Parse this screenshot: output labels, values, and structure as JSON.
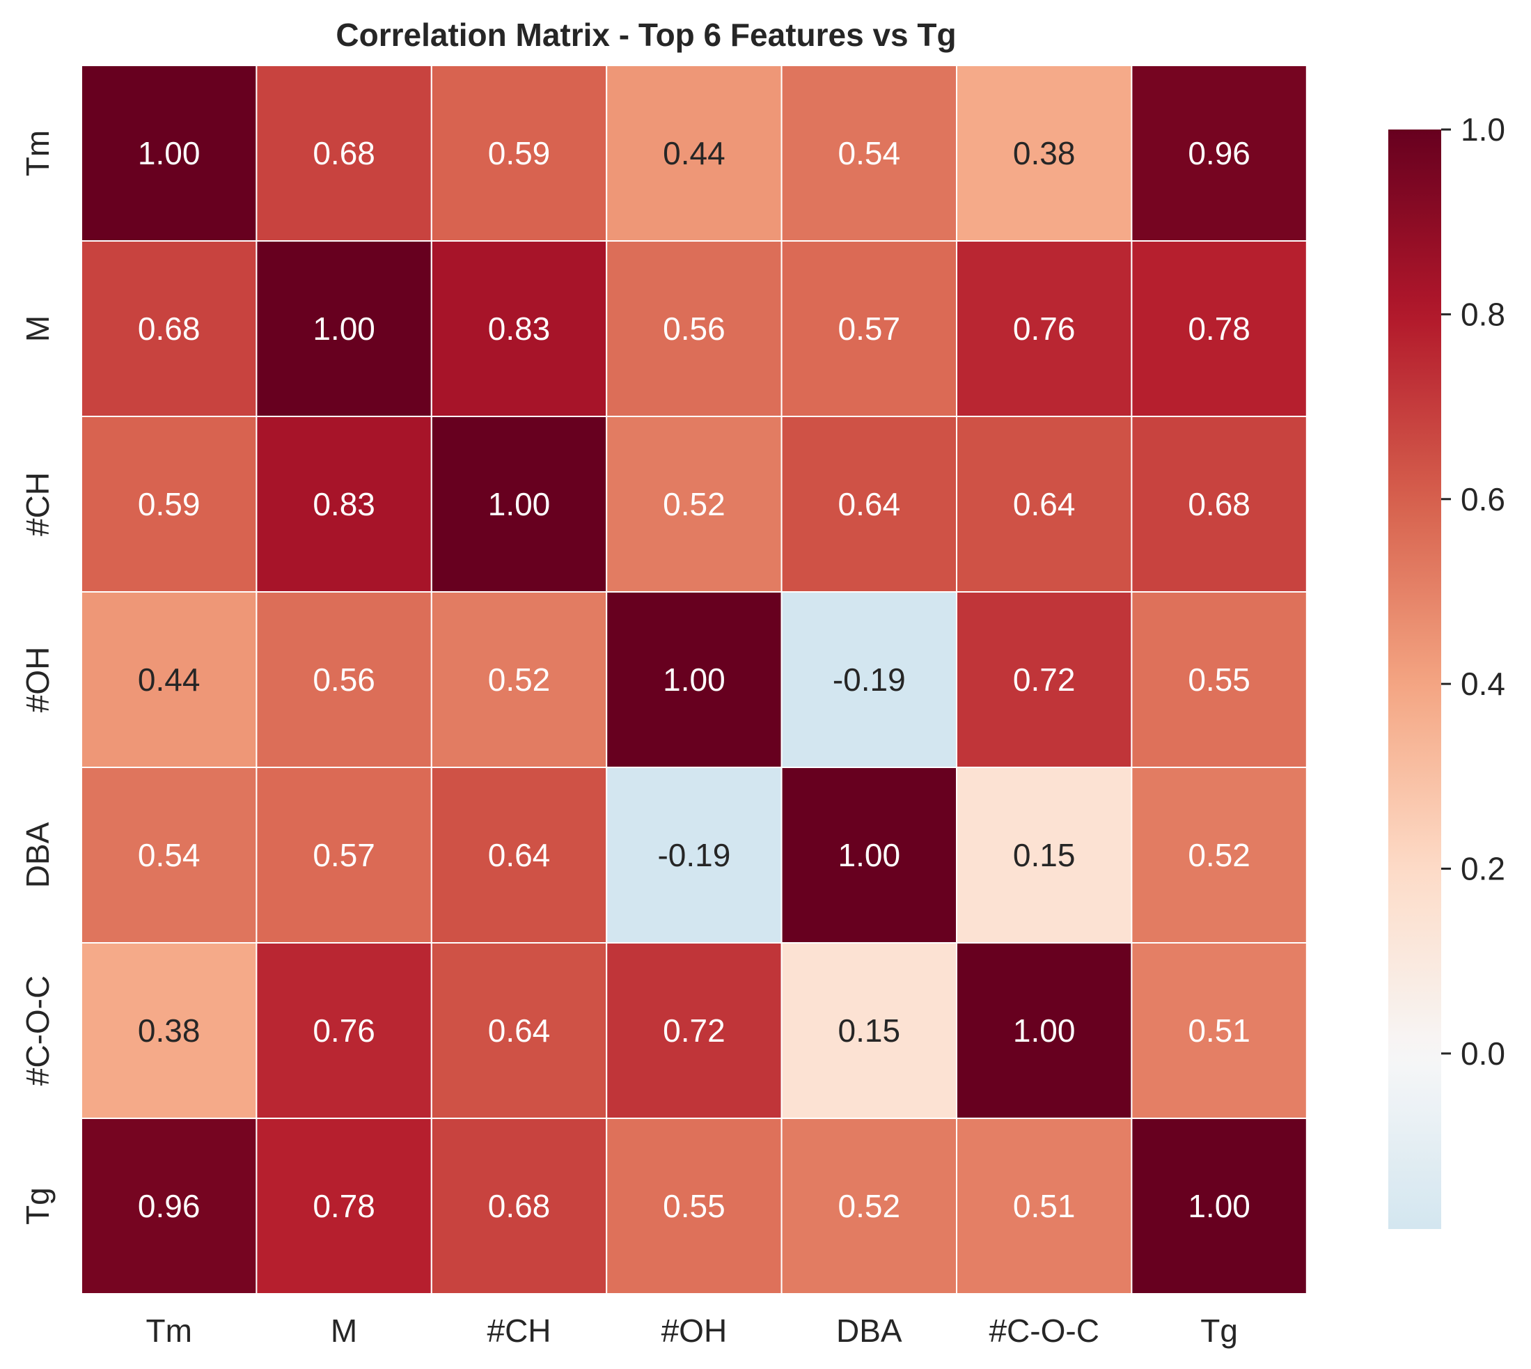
{
  "chart_data": {
    "type": "heatmap",
    "title": "Correlation Matrix - Top 6 Features vs Tg",
    "xlabel": "",
    "ylabel": "",
    "x_categories": [
      "Tm",
      "M",
      "#CH",
      "#OH",
      "DBA",
      "#C-O-C",
      "Tg"
    ],
    "y_categories": [
      "Tm",
      "M",
      "#CH",
      "#OH",
      "DBA",
      "#C-O-C",
      "Tg"
    ],
    "values": [
      [
        1.0,
        0.68,
        0.59,
        0.44,
        0.54,
        0.38,
        0.96
      ],
      [
        0.68,
        1.0,
        0.83,
        0.56,
        0.57,
        0.76,
        0.78
      ],
      [
        0.59,
        0.83,
        1.0,
        0.52,
        0.64,
        0.64,
        0.68
      ],
      [
        0.44,
        0.56,
        0.52,
        1.0,
        -0.19,
        0.72,
        0.55
      ],
      [
        0.54,
        0.57,
        0.64,
        -0.19,
        1.0,
        0.15,
        0.52
      ],
      [
        0.38,
        0.76,
        0.64,
        0.72,
        0.15,
        1.0,
        0.51
      ],
      [
        0.96,
        0.78,
        0.68,
        0.55,
        0.52,
        0.51,
        1.0
      ]
    ],
    "value_format": "0.00",
    "colorbar": {
      "colormap": "RdBu_r",
      "range": [
        -0.19,
        1.0
      ],
      "ticks": [
        0.0,
        0.2,
        0.4,
        0.6,
        0.8,
        1.0
      ],
      "tick_labels": [
        "0.0",
        "0.2",
        "0.4",
        "0.6",
        "0.8",
        "1.0"
      ]
    },
    "colors": {
      "text_dark": "#262626",
      "text_light": "#ffffff",
      "cell_border": "#ffffff"
    }
  }
}
